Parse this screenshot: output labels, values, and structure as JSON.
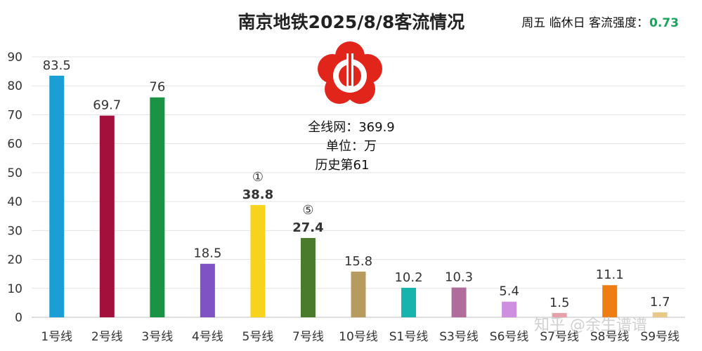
{
  "header": {
    "day": "周五 临休日 客流强度：",
    "intensity": "0.73",
    "intensity_color": "#1aa35a"
  },
  "info": {
    "total": "全线网：369.9",
    "unit": "单位：万",
    "rank": "历史第61"
  },
  "watermark": "知乎 @余生谱谱",
  "chart_data": {
    "type": "bar",
    "title": "南京地铁2025/8/8客流情况",
    "categories": [
      "1号线",
      "2号线",
      "3号线",
      "4号线",
      "5号线",
      "7号线",
      "10号线",
      "S1号线",
      "S3号线",
      "S6号线",
      "S7号线",
      "S8号线",
      "S9号线"
    ],
    "values": [
      83.5,
      69.7,
      76,
      18.5,
      38.8,
      27.4,
      15.8,
      10.2,
      10.3,
      5.4,
      1.5,
      11.1,
      1.7
    ],
    "value_labels": [
      "83.5",
      "69.7",
      "76",
      "18.5",
      "38.8",
      "27.4",
      "15.8",
      "10.2",
      "10.3",
      "5.4",
      "1.5",
      "11.1",
      "1.7"
    ],
    "colors": [
      "#1a9fd4",
      "#a3103c",
      "#1a9444",
      "#7f53c4",
      "#f7d31e",
      "#4a7a2c",
      "#b69a5e",
      "#17b3ad",
      "#b06d9b",
      "#cf8fe0",
      "#e8a0a8",
      "#ee7d12",
      "#e8c98a"
    ],
    "markers": [
      "",
      "",
      "",
      "",
      "①",
      "⑤",
      "",
      "",
      "",
      "",
      "",
      "",
      ""
    ],
    "yticks": [
      "0",
      "10",
      "20",
      "30",
      "40",
      "50",
      "60",
      "70",
      "80",
      "90"
    ],
    "ylim": [
      0,
      90
    ],
    "grid": true,
    "xlabel": "",
    "ylabel": ""
  }
}
